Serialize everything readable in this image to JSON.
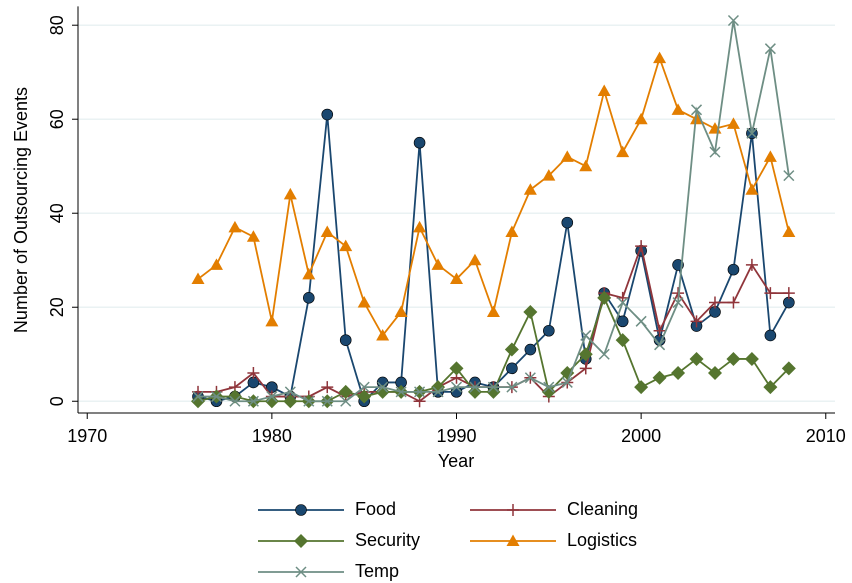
{
  "chart_data": {
    "type": "line",
    "xlabel": "Year",
    "ylabel": "Number of Outsourcing Events",
    "x": [
      1976,
      1977,
      1978,
      1979,
      1980,
      1981,
      1982,
      1983,
      1984,
      1985,
      1986,
      1987,
      1988,
      1989,
      1990,
      1991,
      1992,
      1993,
      1994,
      1995,
      1996,
      1997,
      1998,
      1999,
      2000,
      2001,
      2002,
      2003,
      2004,
      2005,
      2006,
      2007,
      2008
    ],
    "series": [
      {
        "name": "Food",
        "color": "#1a476f",
        "marker": "circle",
        "values": [
          1,
          0,
          1,
          4,
          3,
          1,
          22,
          61,
          13,
          0,
          4,
          4,
          55,
          2,
          2,
          4,
          3,
          7,
          11,
          15,
          38,
          9,
          23,
          17,
          32,
          13,
          29,
          16,
          19,
          28,
          57,
          14,
          21
        ]
      },
      {
        "name": "Cleaning",
        "color": "#90353b",
        "marker": "plus",
        "values": [
          2,
          2,
          3,
          6,
          1,
          1,
          1,
          3,
          1,
          2,
          2,
          2,
          0,
          3,
          5,
          3,
          3,
          3,
          5,
          1,
          4,
          7,
          23,
          22,
          33,
          15,
          23,
          17,
          21,
          21,
          29,
          23,
          23
        ]
      },
      {
        "name": "Security",
        "color": "#55752f",
        "marker": "diamond",
        "values": [
          0,
          1,
          1,
          0,
          0,
          0,
          0,
          0,
          2,
          1,
          2,
          2,
          2,
          3,
          7,
          2,
          2,
          11,
          19,
          2,
          6,
          10,
          22,
          13,
          3,
          5,
          6,
          9,
          6,
          9,
          9,
          3,
          7
        ]
      },
      {
        "name": "Logistics",
        "color": "#e37e00",
        "marker": "triangle",
        "values": [
          26,
          29,
          37,
          35,
          17,
          44,
          27,
          36,
          33,
          21,
          14,
          19,
          37,
          29,
          26,
          30,
          19,
          36,
          45,
          48,
          52,
          50,
          66,
          53,
          60,
          73,
          62,
          60,
          58,
          59,
          45,
          52,
          36
        ]
      },
      {
        "name": "Temp",
        "color": "#6e8e84",
        "marker": "x",
        "values": [
          1,
          1,
          0,
          0,
          1,
          2,
          0,
          0,
          0,
          3,
          3,
          2,
          2,
          2,
          3,
          3,
          3,
          3,
          5,
          3,
          4,
          14,
          10,
          21,
          17,
          12,
          21,
          62,
          53,
          81,
          57,
          75,
          48
        ]
      }
    ],
    "xlim": [
      1969.5,
      2010.5
    ],
    "xticks": [
      1970,
      1980,
      1990,
      2000,
      2010
    ],
    "ylim": [
      -2.5,
      84
    ],
    "yticks": [
      0,
      20,
      40,
      60,
      80
    ],
    "grid": true,
    "legend": "bottom"
  }
}
